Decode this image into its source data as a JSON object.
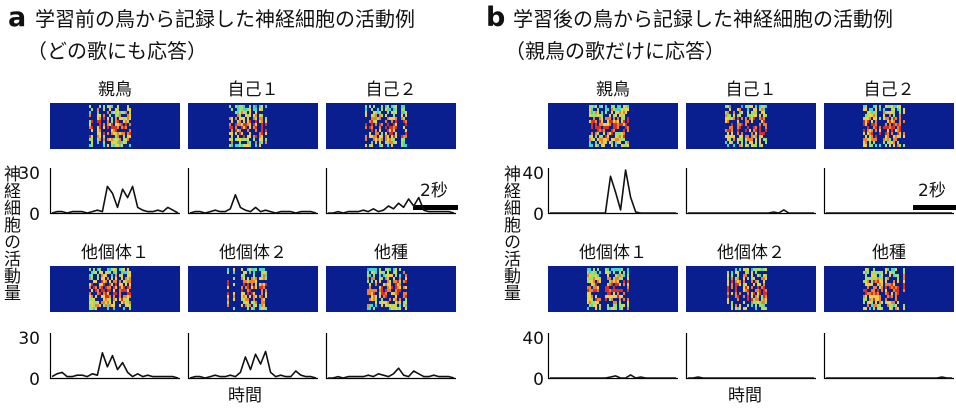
{
  "chart_data": [
    {
      "type": "line",
      "panel": "a",
      "title": "学習前の鳥から記録した神経細胞の活動例",
      "subtitle": "（どの歌にも応答）",
      "ylabel": "神経細胞の活動量",
      "xlabel": "時間",
      "ylim": [
        0,
        30
      ],
      "yticks": [
        "30",
        "0"
      ],
      "scale_label": "2秒",
      "grid": false,
      "series": [
        {
          "name": "親鳥",
          "values": [
            0,
            1,
            1,
            0,
            1,
            1,
            1,
            0,
            1,
            2,
            1,
            19,
            14,
            4,
            17,
            11,
            19,
            4,
            2,
            1,
            1,
            2,
            1,
            4,
            2,
            0
          ]
        },
        {
          "name": "自己１",
          "values": [
            0,
            1,
            1,
            0,
            1,
            2,
            1,
            1,
            3,
            13,
            4,
            2,
            1,
            4,
            1,
            2,
            1,
            0,
            1,
            1,
            1,
            0,
            1,
            1,
            1,
            0
          ]
        },
        {
          "name": "自己２",
          "values": [
            0,
            0,
            1,
            0,
            1,
            1,
            1,
            2,
            1,
            3,
            1,
            2,
            5,
            3,
            7,
            4,
            10,
            5,
            11,
            2,
            1,
            1,
            1,
            1,
            1,
            0
          ]
        },
        {
          "name": "他個体１",
          "values": [
            1,
            3,
            4,
            1,
            1,
            2,
            2,
            1,
            3,
            2,
            18,
            8,
            16,
            6,
            11,
            4,
            1,
            3,
            1,
            2,
            1,
            1,
            1,
            1,
            1,
            0
          ]
        },
        {
          "name": "他個体２",
          "values": [
            0,
            1,
            1,
            0,
            1,
            2,
            1,
            1,
            2,
            1,
            4,
            15,
            6,
            17,
            10,
            19,
            4,
            1,
            2,
            1,
            1,
            5,
            2,
            1,
            1,
            0
          ]
        },
        {
          "name": "他種",
          "values": [
            0,
            0,
            1,
            0,
            1,
            1,
            1,
            1,
            2,
            1,
            3,
            2,
            1,
            3,
            7,
            2,
            1,
            5,
            3,
            1,
            1,
            2,
            1,
            1,
            1,
            0
          ]
        }
      ]
    },
    {
      "type": "line",
      "panel": "b",
      "title": "学習後の鳥から記録した神経細胞の活動例",
      "subtitle": "（親鳥の歌だけに応答）",
      "ylabel": "神経細胞の活動量",
      "xlabel": "時間",
      "ylim": [
        0,
        40
      ],
      "yticks": [
        "40",
        "0"
      ],
      "scale_label": "2秒",
      "grid": false,
      "series": [
        {
          "name": "親鳥",
          "values": [
            0,
            0,
            0,
            0,
            0,
            0,
            0,
            0,
            0,
            0,
            0,
            0,
            35,
            20,
            3,
            41,
            15,
            1,
            0,
            0,
            0,
            0,
            0,
            0,
            0,
            0
          ]
        },
        {
          "name": "自己１",
          "values": [
            0,
            0,
            0,
            0,
            0,
            0,
            0,
            0,
            0,
            0,
            0,
            0,
            0,
            0,
            0,
            0,
            0,
            1,
            0,
            3,
            0,
            0,
            0,
            0,
            0,
            0
          ]
        },
        {
          "name": "自己２",
          "values": [
            0,
            0,
            0,
            0,
            0,
            0,
            0,
            0,
            0,
            0,
            0,
            0,
            0,
            0,
            0,
            0,
            0,
            0,
            0,
            0,
            0,
            0,
            0,
            0,
            0,
            0
          ]
        },
        {
          "name": "他個体１",
          "values": [
            0,
            0,
            0,
            0,
            0,
            0,
            0,
            0,
            0,
            0,
            0,
            0,
            1,
            2,
            0,
            0,
            3,
            0,
            1,
            0,
            0,
            0,
            0,
            0,
            0,
            0
          ]
        },
        {
          "name": "他個体２",
          "values": [
            0,
            0,
            1,
            0,
            0,
            0,
            0,
            0,
            0,
            0,
            0,
            0,
            0,
            0,
            0,
            0,
            0,
            0,
            0,
            0,
            0,
            0,
            0,
            0,
            0,
            0
          ]
        },
        {
          "name": "他種",
          "values": [
            0,
            0,
            0,
            0,
            0,
            0,
            0,
            0,
            0,
            0,
            0,
            0,
            0,
            0,
            0,
            0,
            0,
            0,
            0,
            0,
            0,
            0,
            0,
            1,
            0,
            0
          ]
        }
      ]
    }
  ],
  "colors": {
    "trace": "#111111",
    "spectrogram_background": "#0a1f8f",
    "spectrogram_high": "#e8b030"
  }
}
